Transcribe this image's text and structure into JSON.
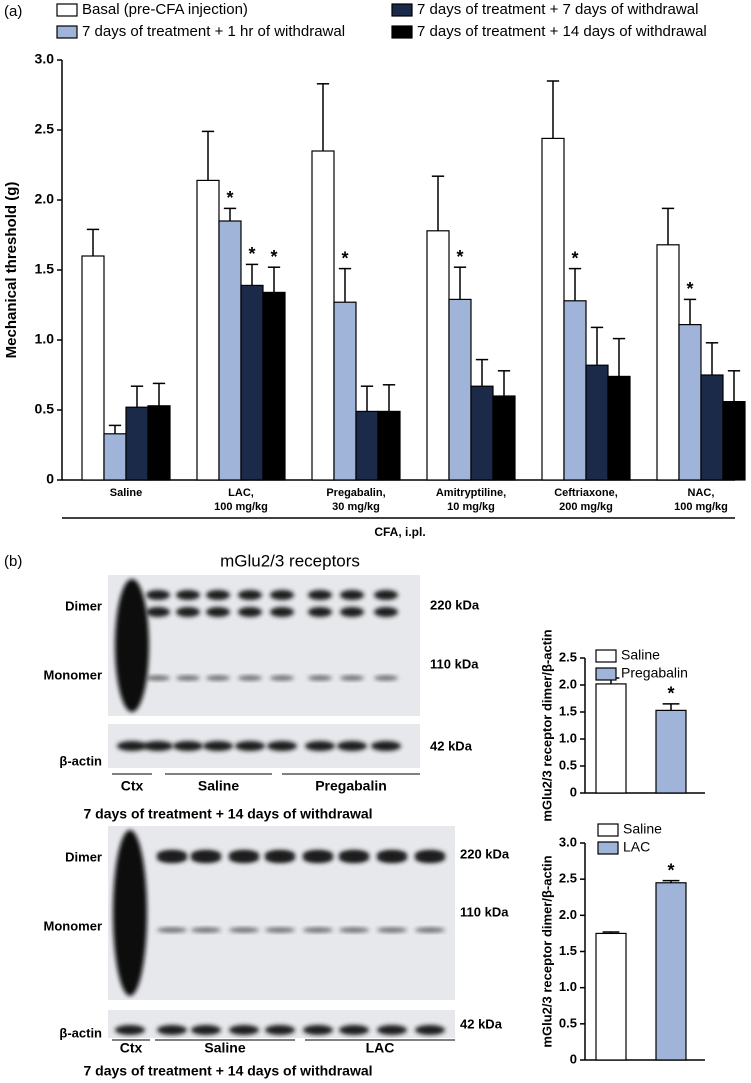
{
  "panel_b": "(b)",
  "chart_data": [
    {
      "type": "bar",
      "panel_label": "(a)",
      "y_label": "Mechanical threshold (g)",
      "x_label": "CFA, i.pl.",
      "categories": [
        "Saline",
        "LAC,\n100 mg/kg",
        "Pregabalin,\n30 mg/kg",
        "Amitryptiline,\n10 mg/kg",
        "Ceftriaxone,\n200 mg/kg",
        "NAC,\n100 mg/kg"
      ],
      "series": [
        {
          "name": "Basal (pre-CFA injection)",
          "color": "#ffffff",
          "values": [
            1.6,
            2.14,
            2.35,
            1.78,
            2.44,
            1.68
          ],
          "errors": [
            0.19,
            0.35,
            0.48,
            0.39,
            0.41,
            0.26
          ],
          "marks": [
            null,
            null,
            null,
            null,
            null,
            null
          ]
        },
        {
          "name": "7 days of treatment + 1 hr of withdrawal",
          "color": "#9fb4d8",
          "values": [
            0.33,
            1.85,
            1.27,
            1.29,
            1.28,
            1.11
          ],
          "errors": [
            0.06,
            0.09,
            0.24,
            0.23,
            0.23,
            0.18
          ],
          "marks": [
            null,
            "*",
            "*",
            "*",
            "*",
            "*"
          ]
        },
        {
          "name": "7 days of treatment + 7 days of withdrawal",
          "color": "#1b2a48",
          "values": [
            0.52,
            1.39,
            0.49,
            0.67,
            0.82,
            0.75
          ],
          "errors": [
            0.15,
            0.15,
            0.18,
            0.19,
            0.27,
            0.23
          ],
          "marks": [
            null,
            "*",
            null,
            null,
            null,
            null
          ]
        },
        {
          "name": "7 days of treatment + 14 days of withdrawal",
          "color": "#000000",
          "values": [
            0.53,
            1.34,
            0.49,
            0.6,
            0.74,
            0.56
          ],
          "errors": [
            0.16,
            0.18,
            0.19,
            0.18,
            0.27,
            0.22
          ],
          "marks": [
            null,
            "*",
            null,
            null,
            null,
            null
          ]
        }
      ],
      "ylim": [
        0,
        3
      ],
      "yticks": [
        0,
        0.5,
        {
          "value": 1,
          "label": "1.0"
        },
        1.5,
        {
          "value": 2,
          "label": "2.0"
        },
        2.5,
        {
          "value": 3,
          "label": "3.0"
        }
      ],
      "legend": "top"
    },
    {
      "type": "bar",
      "y_label": "mGlu2/3 receptor dimer/β-actin",
      "series": [
        {
          "name": "Saline",
          "color": "#ffffff",
          "values": [
            2.02
          ],
          "errors": [
            0.11
          ],
          "marks": [
            null
          ]
        },
        {
          "name": "Pregabalin",
          "color": "#9fb4d8",
          "values": [
            1.53
          ],
          "errors": [
            0.12
          ],
          "marks": [
            "*"
          ]
        }
      ],
      "ylim": [
        0,
        2.5
      ],
      "yticks": [
        0,
        0.5,
        {
          "value": 1,
          "label": "1.0"
        },
        1.5,
        {
          "value": 2,
          "label": "2.0"
        },
        2.5
      ],
      "legend": "top-left"
    },
    {
      "type": "bar",
      "y_label": "mGlu2/3 receptor dimer/β-actin",
      "series": [
        {
          "name": "Saline",
          "color": "#ffffff",
          "values": [
            1.75
          ],
          "errors": [
            0.02
          ],
          "marks": [
            null
          ]
        },
        {
          "name": "LAC",
          "color": "#9fb4d8",
          "values": [
            2.45
          ],
          "errors": [
            0.03
          ],
          "marks": [
            "*"
          ]
        }
      ],
      "ylim": [
        0,
        3
      ],
      "yticks": [
        0,
        0.5,
        {
          "value": 1,
          "label": "1.0"
        },
        1.5,
        {
          "value": 2,
          "label": "2.0"
        },
        2.5,
        {
          "value": 3,
          "label": "3.0"
        }
      ],
      "legend": "top-left"
    }
  ],
  "blots": [
    {
      "title": "mGlu2/3 receptors",
      "rows": [
        "Dimer",
        "Monomer",
        "β-actin"
      ],
      "sizes": [
        "220 kDa",
        "110 kDa",
        "42 kDa"
      ],
      "lanes": [
        "Ctx",
        "Saline",
        "Pregabalin"
      ],
      "caption": "7 days of treatment + 14 days of withdrawal"
    },
    {
      "rows": [
        "Dimer",
        "Monomer",
        "β-actin"
      ],
      "sizes": [
        "220 kDa",
        "110 kDa",
        "42 kDa"
      ],
      "lanes": [
        "Ctx",
        "Saline",
        "LAC"
      ],
      "caption": "7 days of treatment + 14 days of withdrawal"
    }
  ]
}
